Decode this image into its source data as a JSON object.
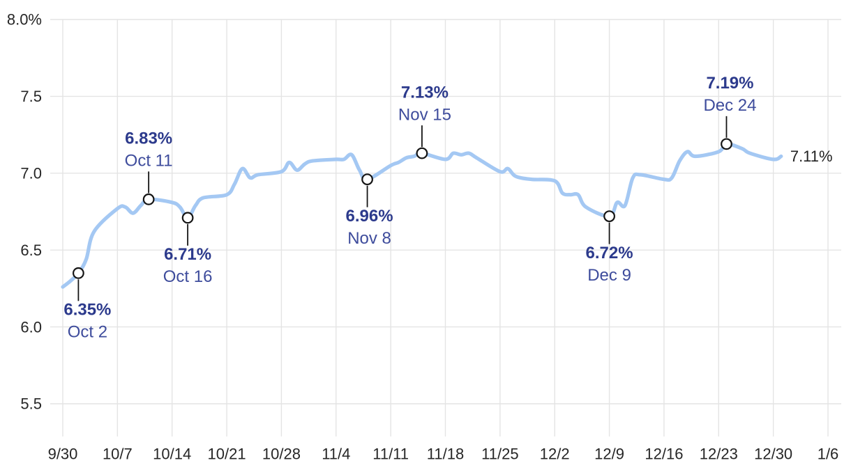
{
  "chart_data": {
    "type": "line",
    "title": "",
    "legend": "none",
    "grid": "on",
    "y_axis": {
      "ticks": [
        {
          "label": "8.0%",
          "value": 8.0
        },
        {
          "label": "7.5",
          "value": 7.5
        },
        {
          "label": "7.0",
          "value": 7.0
        },
        {
          "label": "6.5",
          "value": 6.5
        },
        {
          "label": "6.0",
          "value": 6.0
        },
        {
          "label": "5.5",
          "value": 5.5
        }
      ],
      "ylim_top": 8.0,
      "ylim_bottom_gridline": 5.5
    },
    "x_axis": {
      "ticks": [
        {
          "label": "9/30",
          "day": 0
        },
        {
          "label": "10/7",
          "day": 7
        },
        {
          "label": "10/14",
          "day": 14
        },
        {
          "label": "10/21",
          "day": 21
        },
        {
          "label": "10/28",
          "day": 28
        },
        {
          "label": "11/4",
          "day": 35
        },
        {
          "label": "11/11",
          "day": 42
        },
        {
          "label": "11/18",
          "day": 49
        },
        {
          "label": "11/25",
          "day": 56
        },
        {
          "label": "12/2",
          "day": 63
        },
        {
          "label": "12/9",
          "day": 70
        },
        {
          "label": "12/16",
          "day": 77
        },
        {
          "label": "12/23",
          "day": 84
        },
        {
          "label": "12/30",
          "day": 91
        },
        {
          "label": "1/6",
          "day": 98
        }
      ]
    },
    "series": {
      "columns": [
        "date",
        "day_offset",
        "rate_pct"
      ],
      "points": [
        [
          "9/30",
          0,
          6.26
        ],
        [
          "10/1",
          1,
          6.3
        ],
        [
          "10/2",
          2,
          6.35
        ],
        [
          "10/3",
          3,
          6.44
        ],
        [
          "10/4",
          4,
          6.62
        ],
        [
          "10/7",
          7,
          6.77
        ],
        [
          "10/8",
          8,
          6.78
        ],
        [
          "10/9",
          9,
          6.74
        ],
        [
          "10/10",
          10,
          6.79
        ],
        [
          "10/11",
          11,
          6.83
        ],
        [
          "10/14",
          14,
          6.81
        ],
        [
          "10/15",
          15,
          6.78
        ],
        [
          "10/16",
          16,
          6.71
        ],
        [
          "10/17",
          17,
          6.79
        ],
        [
          "10/18",
          18,
          6.84
        ],
        [
          "10/21",
          21,
          6.86
        ],
        [
          "10/22",
          22,
          6.93
        ],
        [
          "10/23",
          23,
          7.03
        ],
        [
          "10/24",
          24,
          6.97
        ],
        [
          "10/25",
          25,
          6.99
        ],
        [
          "10/28",
          28,
          7.01
        ],
        [
          "10/29",
          29,
          7.07
        ],
        [
          "10/30",
          30,
          7.02
        ],
        [
          "10/31",
          31,
          7.06
        ],
        [
          "11/1",
          32,
          7.08
        ],
        [
          "11/4",
          35,
          7.09
        ],
        [
          "11/5",
          36,
          7.09
        ],
        [
          "11/6",
          37,
          7.12
        ],
        [
          "11/7",
          38,
          7.02
        ],
        [
          "11/8",
          39,
          6.96
        ],
        [
          "11/11",
          42,
          7.05
        ],
        [
          "11/12",
          43,
          7.07
        ],
        [
          "11/13",
          44,
          7.1
        ],
        [
          "11/14",
          45,
          7.11
        ],
        [
          "11/15",
          46,
          7.13
        ],
        [
          "11/18",
          49,
          7.09
        ],
        [
          "11/19",
          50,
          7.13
        ],
        [
          "11/20",
          51,
          7.12
        ],
        [
          "11/21",
          52,
          7.13
        ],
        [
          "11/22",
          53,
          7.1
        ],
        [
          "11/25",
          56,
          7.01
        ],
        [
          "11/26",
          57,
          7.03
        ],
        [
          "11/27",
          58,
          6.98
        ],
        [
          "11/29",
          60,
          6.96
        ],
        [
          "12/2",
          63,
          6.95
        ],
        [
          "12/3",
          64,
          6.87
        ],
        [
          "12/4",
          65,
          6.86
        ],
        [
          "12/5",
          66,
          6.86
        ],
        [
          "12/6",
          67,
          6.78
        ],
        [
          "12/9",
          70,
          6.72
        ],
        [
          "12/10",
          71,
          6.81
        ],
        [
          "12/11",
          72,
          6.79
        ],
        [
          "12/12",
          73,
          6.97
        ],
        [
          "12/13",
          74,
          6.99
        ],
        [
          "12/16",
          77,
          6.96
        ],
        [
          "12/17",
          78,
          6.97
        ],
        [
          "12/18",
          79,
          7.08
        ],
        [
          "12/19",
          80,
          7.14
        ],
        [
          "12/20",
          81,
          7.11
        ],
        [
          "12/23",
          84,
          7.14
        ],
        [
          "12/24",
          85,
          7.19
        ],
        [
          "12/26",
          87,
          7.16
        ],
        [
          "12/27",
          88,
          7.13
        ],
        [
          "12/30",
          91,
          7.09
        ],
        [
          "12/31",
          92,
          7.11
        ]
      ]
    },
    "annotations": [
      {
        "value_label": "6.35%",
        "date_label": "Oct 2",
        "day": 2,
        "value": 6.35,
        "position": "below",
        "dx": 13
      },
      {
        "value_label": "6.83%",
        "date_label": "Oct 11",
        "day": 11,
        "value": 6.83,
        "position": "above",
        "dx": 0
      },
      {
        "value_label": "6.71%",
        "date_label": "Oct 16",
        "day": 16,
        "value": 6.71,
        "position": "below",
        "dx": 0
      },
      {
        "value_label": "6.96%",
        "date_label": "Nov 8",
        "day": 39,
        "value": 6.96,
        "position": "below",
        "dx": 3
      },
      {
        "value_label": "7.13%",
        "date_label": "Nov 15",
        "day": 46,
        "value": 7.13,
        "position": "above",
        "dx": 4
      },
      {
        "value_label": "6.72%",
        "date_label": "Dec 9",
        "day": 70,
        "value": 6.72,
        "position": "below",
        "dx": 0
      },
      {
        "value_label": "7.19%",
        "date_label": "Dec 24",
        "day": 85,
        "value": 7.19,
        "position": "above",
        "dx": 5
      }
    ],
    "end_label": {
      "text": "7.11%",
      "day": 92,
      "value": 7.11
    },
    "colors": {
      "line": "#a4c8f3",
      "grid": "#e4e4e4",
      "axis_text": "#262626",
      "annotation_value": "#2c3a8c",
      "annotation_date": "#3e4c9c",
      "marker_fill": "#ffffff",
      "marker_stroke": "#141414",
      "leader_line": "#141414",
      "end_label_text": "#212121",
      "background": "#ffffff"
    }
  }
}
